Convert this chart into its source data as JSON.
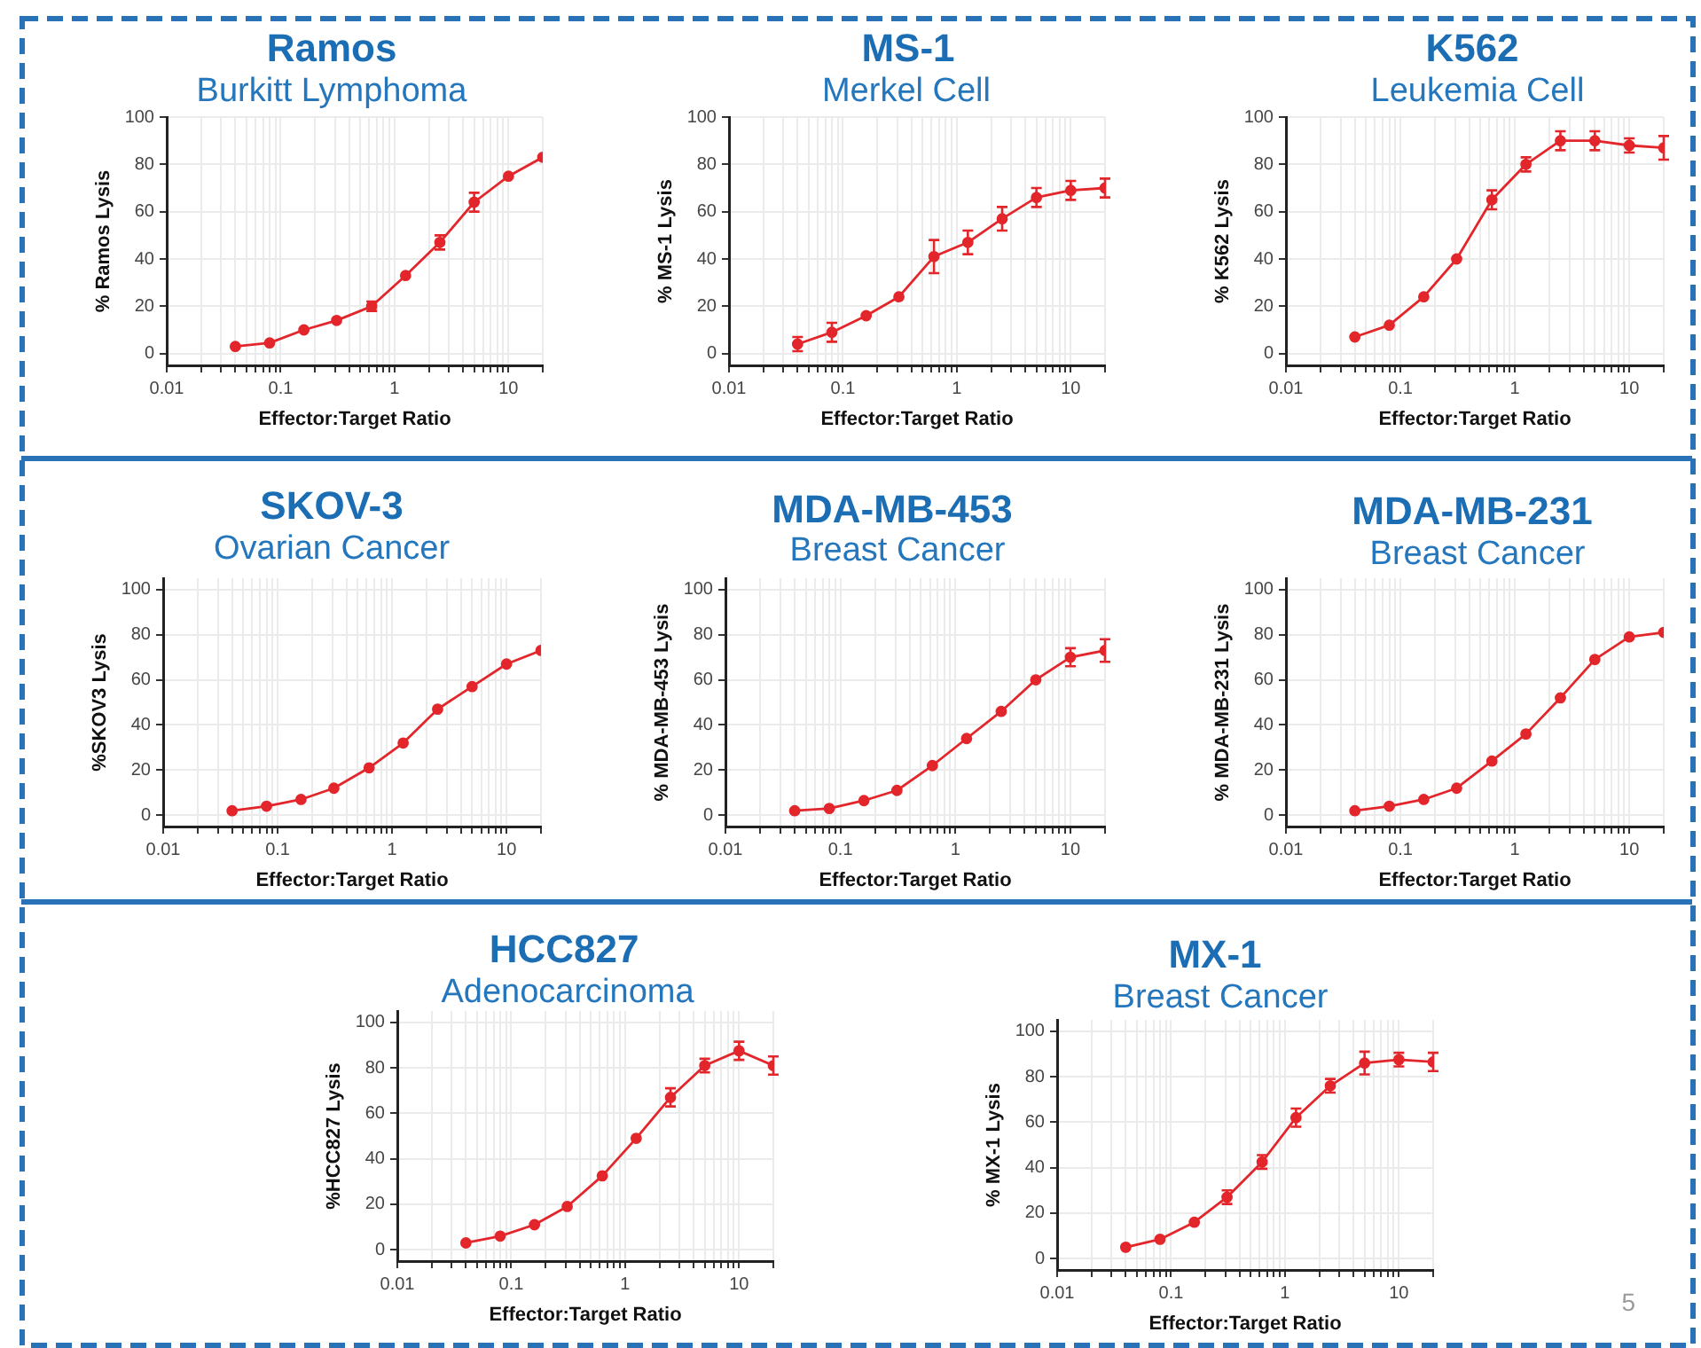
{
  "chart_data": [
    {
      "type": "line",
      "title": "Ramos",
      "subtitle": "Burkitt Lymphoma",
      "xlabel": "Effector:Target Ratio",
      "ylabel": "% Ramos Lysis",
      "x": [
        0.04,
        0.08,
        0.16,
        0.31,
        0.63,
        1.25,
        2.5,
        5,
        10,
        20
      ],
      "series": [
        {
          "color": "#e3262b",
          "values": [
            3,
            4.5,
            10,
            14,
            20,
            33,
            47,
            64,
            75,
            83
          ],
          "errors": [
            null,
            null,
            null,
            null,
            2,
            null,
            3,
            4,
            null,
            null
          ]
        }
      ],
      "log": "x",
      "xlim": [
        0.01,
        20
      ],
      "xticks": [
        0.01,
        {
          "value": 0.02,
          "label": null
        },
        {
          "value": 0.03,
          "label": null
        },
        {
          "value": 0.04,
          "label": null
        },
        {
          "value": 0.05,
          "label": null
        },
        {
          "value": 0.06,
          "label": null
        },
        {
          "value": 0.07,
          "label": null
        },
        {
          "value": 0.08,
          "label": null
        },
        {
          "value": 0.09,
          "label": null
        },
        0.1,
        {
          "value": 0.2,
          "label": null
        },
        {
          "value": 0.3,
          "label": null
        },
        {
          "value": 0.4,
          "label": null
        },
        {
          "value": 0.5,
          "label": null
        },
        {
          "value": 0.6,
          "label": null
        },
        {
          "value": 0.7,
          "label": null
        },
        {
          "value": 0.8,
          "label": null
        },
        {
          "value": 0.9,
          "label": null
        },
        1,
        {
          "value": 2,
          "label": null
        },
        {
          "value": 3,
          "label": null
        },
        {
          "value": 4,
          "label": null
        },
        {
          "value": 5,
          "label": null
        },
        {
          "value": 6,
          "label": null
        },
        {
          "value": 7,
          "label": null
        },
        {
          "value": 8,
          "label": null
        },
        {
          "value": 9,
          "label": null
        },
        10,
        {
          "value": 20,
          "label": null
        }
      ],
      "ylim": [
        -5,
        100
      ],
      "yticks": [
        0,
        20,
        40,
        60,
        80,
        100
      ],
      "grid": true,
      "marker": "circle",
      "line_style": "solid"
    },
    {
      "type": "line",
      "title": "MS-1",
      "subtitle": "Merkel Cell",
      "xlabel": "Effector:Target Ratio",
      "ylabel": "% MS-1 Lysis",
      "x": [
        0.04,
        0.08,
        0.16,
        0.31,
        0.63,
        1.25,
        2.5,
        5,
        10,
        20
      ],
      "series": [
        {
          "color": "#e3262b",
          "values": [
            4,
            9,
            16,
            24,
            41,
            47,
            57,
            66,
            69,
            70
          ],
          "errors": [
            3,
            4,
            null,
            null,
            7,
            5,
            5,
            4,
            4,
            4
          ]
        }
      ],
      "log": "x",
      "xlim": [
        0.01,
        20
      ],
      "xticks": [
        0.01,
        {
          "value": 0.02,
          "label": null
        },
        {
          "value": 0.03,
          "label": null
        },
        {
          "value": 0.04,
          "label": null
        },
        {
          "value": 0.05,
          "label": null
        },
        {
          "value": 0.06,
          "label": null
        },
        {
          "value": 0.07,
          "label": null
        },
        {
          "value": 0.08,
          "label": null
        },
        {
          "value": 0.09,
          "label": null
        },
        0.1,
        {
          "value": 0.2,
          "label": null
        },
        {
          "value": 0.3,
          "label": null
        },
        {
          "value": 0.4,
          "label": null
        },
        {
          "value": 0.5,
          "label": null
        },
        {
          "value": 0.6,
          "label": null
        },
        {
          "value": 0.7,
          "label": null
        },
        {
          "value": 0.8,
          "label": null
        },
        {
          "value": 0.9,
          "label": null
        },
        1,
        {
          "value": 2,
          "label": null
        },
        {
          "value": 3,
          "label": null
        },
        {
          "value": 4,
          "label": null
        },
        {
          "value": 5,
          "label": null
        },
        {
          "value": 6,
          "label": null
        },
        {
          "value": 7,
          "label": null
        },
        {
          "value": 8,
          "label": null
        },
        {
          "value": 9,
          "label": null
        },
        10,
        {
          "value": 20,
          "label": null
        }
      ],
      "ylim": [
        -5,
        100
      ],
      "yticks": [
        0,
        20,
        40,
        60,
        80,
        100
      ],
      "grid": true,
      "marker": "circle",
      "line_style": "solid"
    },
    {
      "type": "line",
      "title": "K562",
      "subtitle": "Leukemia Cell",
      "xlabel": "Effector:Target Ratio",
      "ylabel": "% K562 Lysis",
      "x": [
        0.04,
        0.08,
        0.16,
        0.31,
        0.63,
        1.25,
        2.5,
        5,
        10,
        20
      ],
      "series": [
        {
          "color": "#e3262b",
          "values": [
            7,
            12,
            24,
            40,
            65,
            80,
            90,
            90,
            88,
            87
          ],
          "errors": [
            null,
            null,
            null,
            null,
            4,
            3,
            4,
            4,
            3,
            5
          ]
        }
      ],
      "log": "x",
      "xlim": [
        0.01,
        20
      ],
      "xticks": [
        0.01,
        {
          "value": 0.02,
          "label": null
        },
        {
          "value": 0.03,
          "label": null
        },
        {
          "value": 0.04,
          "label": null
        },
        {
          "value": 0.05,
          "label": null
        },
        {
          "value": 0.06,
          "label": null
        },
        {
          "value": 0.07,
          "label": null
        },
        {
          "value": 0.08,
          "label": null
        },
        {
          "value": 0.09,
          "label": null
        },
        0.1,
        {
          "value": 0.2,
          "label": null
        },
        {
          "value": 0.3,
          "label": null
        },
        {
          "value": 0.4,
          "label": null
        },
        {
          "value": 0.5,
          "label": null
        },
        {
          "value": 0.6,
          "label": null
        },
        {
          "value": 0.7,
          "label": null
        },
        {
          "value": 0.8,
          "label": null
        },
        {
          "value": 0.9,
          "label": null
        },
        1,
        {
          "value": 2,
          "label": null
        },
        {
          "value": 3,
          "label": null
        },
        {
          "value": 4,
          "label": null
        },
        {
          "value": 5,
          "label": null
        },
        {
          "value": 6,
          "label": null
        },
        {
          "value": 7,
          "label": null
        },
        {
          "value": 8,
          "label": null
        },
        {
          "value": 9,
          "label": null
        },
        10,
        {
          "value": 20,
          "label": null
        }
      ],
      "ylim": [
        -5,
        100
      ],
      "yticks": [
        0,
        20,
        40,
        60,
        80,
        100
      ],
      "grid": true,
      "marker": "circle",
      "line_style": "solid"
    },
    {
      "type": "line",
      "title": "SKOV-3",
      "subtitle": "Ovarian Cancer",
      "xlabel": "Effector:Target Ratio",
      "ylabel": "%SKOV3 Lysis",
      "x": [
        0.04,
        0.08,
        0.16,
        0.31,
        0.63,
        1.25,
        2.5,
        5,
        10,
        20
      ],
      "series": [
        {
          "color": "#e3262b",
          "values": [
            2,
            4,
            7,
            12,
            21,
            32,
            47,
            57,
            67,
            73
          ]
        }
      ],
      "log": "x",
      "xlim": [
        0.01,
        20
      ],
      "xticks": [
        0.01,
        {
          "value": 0.02,
          "label": null
        },
        {
          "value": 0.03,
          "label": null
        },
        {
          "value": 0.04,
          "label": null
        },
        {
          "value": 0.05,
          "label": null
        },
        {
          "value": 0.06,
          "label": null
        },
        {
          "value": 0.07,
          "label": null
        },
        {
          "value": 0.08,
          "label": null
        },
        {
          "value": 0.09,
          "label": null
        },
        0.1,
        {
          "value": 0.2,
          "label": null
        },
        {
          "value": 0.3,
          "label": null
        },
        {
          "value": 0.4,
          "label": null
        },
        {
          "value": 0.5,
          "label": null
        },
        {
          "value": 0.6,
          "label": null
        },
        {
          "value": 0.7,
          "label": null
        },
        {
          "value": 0.8,
          "label": null
        },
        {
          "value": 0.9,
          "label": null
        },
        1,
        {
          "value": 2,
          "label": null
        },
        {
          "value": 3,
          "label": null
        },
        {
          "value": 4,
          "label": null
        },
        {
          "value": 5,
          "label": null
        },
        {
          "value": 6,
          "label": null
        },
        {
          "value": 7,
          "label": null
        },
        {
          "value": 8,
          "label": null
        },
        {
          "value": 9,
          "label": null
        },
        10,
        {
          "value": 20,
          "label": null
        }
      ],
      "ylim": [
        -5,
        105
      ],
      "yticks": [
        0,
        20,
        40,
        60,
        80,
        100
      ],
      "grid": true,
      "marker": "circle",
      "line_style": "solid"
    },
    {
      "type": "line",
      "title": "MDA-MB-453",
      "subtitle": "Breast Cancer",
      "xlabel": "Effector:Target Ratio",
      "ylabel": "% MDA-MB-453 Lysis",
      "x": [
        0.04,
        0.08,
        0.16,
        0.31,
        0.63,
        1.25,
        2.5,
        5,
        10,
        20
      ],
      "series": [
        {
          "color": "#e3262b",
          "values": [
            2,
            3,
            6.5,
            11,
            22,
            34,
            46,
            60,
            70,
            73
          ],
          "errors": [
            null,
            null,
            null,
            null,
            null,
            null,
            null,
            null,
            4,
            5
          ]
        }
      ],
      "log": "x",
      "xlim": [
        0.01,
        20
      ],
      "xticks": [
        0.01,
        {
          "value": 0.02,
          "label": null
        },
        {
          "value": 0.03,
          "label": null
        },
        {
          "value": 0.04,
          "label": null
        },
        {
          "value": 0.05,
          "label": null
        },
        {
          "value": 0.06,
          "label": null
        },
        {
          "value": 0.07,
          "label": null
        },
        {
          "value": 0.08,
          "label": null
        },
        {
          "value": 0.09,
          "label": null
        },
        0.1,
        {
          "value": 0.2,
          "label": null
        },
        {
          "value": 0.3,
          "label": null
        },
        {
          "value": 0.4,
          "label": null
        },
        {
          "value": 0.5,
          "label": null
        },
        {
          "value": 0.6,
          "label": null
        },
        {
          "value": 0.7,
          "label": null
        },
        {
          "value": 0.8,
          "label": null
        },
        {
          "value": 0.9,
          "label": null
        },
        1,
        {
          "value": 2,
          "label": null
        },
        {
          "value": 3,
          "label": null
        },
        {
          "value": 4,
          "label": null
        },
        {
          "value": 5,
          "label": null
        },
        {
          "value": 6,
          "label": null
        },
        {
          "value": 7,
          "label": null
        },
        {
          "value": 8,
          "label": null
        },
        {
          "value": 9,
          "label": null
        },
        10,
        {
          "value": 20,
          "label": null
        }
      ],
      "ylim": [
        -5,
        105
      ],
      "yticks": [
        0,
        20,
        40,
        60,
        80,
        100
      ],
      "grid": true,
      "marker": "circle",
      "line_style": "solid"
    },
    {
      "type": "line",
      "title": "MDA-MB-231",
      "subtitle": "Breast Cancer",
      "xlabel": "Effector:Target Ratio",
      "ylabel": "% MDA-MB-231 Lysis",
      "x": [
        0.04,
        0.08,
        0.16,
        0.31,
        0.63,
        1.25,
        2.5,
        5,
        10,
        20
      ],
      "series": [
        {
          "color": "#e3262b",
          "values": [
            2,
            4,
            7,
            12,
            24,
            36,
            52,
            69,
            79,
            81
          ]
        }
      ],
      "log": "x",
      "xlim": [
        0.01,
        20
      ],
      "xticks": [
        0.01,
        {
          "value": 0.02,
          "label": null
        },
        {
          "value": 0.03,
          "label": null
        },
        {
          "value": 0.04,
          "label": null
        },
        {
          "value": 0.05,
          "label": null
        },
        {
          "value": 0.06,
          "label": null
        },
        {
          "value": 0.07,
          "label": null
        },
        {
          "value": 0.08,
          "label": null
        },
        {
          "value": 0.09,
          "label": null
        },
        0.1,
        {
          "value": 0.2,
          "label": null
        },
        {
          "value": 0.3,
          "label": null
        },
        {
          "value": 0.4,
          "label": null
        },
        {
          "value": 0.5,
          "label": null
        },
        {
          "value": 0.6,
          "label": null
        },
        {
          "value": 0.7,
          "label": null
        },
        {
          "value": 0.8,
          "label": null
        },
        {
          "value": 0.9,
          "label": null
        },
        1,
        {
          "value": 2,
          "label": null
        },
        {
          "value": 3,
          "label": null
        },
        {
          "value": 4,
          "label": null
        },
        {
          "value": 5,
          "label": null
        },
        {
          "value": 6,
          "label": null
        },
        {
          "value": 7,
          "label": null
        },
        {
          "value": 8,
          "label": null
        },
        {
          "value": 9,
          "label": null
        },
        10,
        {
          "value": 20,
          "label": null
        }
      ],
      "ylim": [
        -5,
        105
      ],
      "yticks": [
        0,
        20,
        40,
        60,
        80,
        100
      ],
      "grid": true,
      "marker": "circle",
      "line_style": "solid"
    },
    {
      "type": "line",
      "title": "HCC827",
      "subtitle": "Adenocarcinoma",
      "xlabel": "Effector:Target Ratio",
      "ylabel": "%HCC827 Lysis",
      "x": [
        0.04,
        0.08,
        0.16,
        0.31,
        0.63,
        1.25,
        2.5,
        5,
        10,
        20
      ],
      "series": [
        {
          "color": "#e3262b",
          "values": [
            3,
            6,
            11,
            19,
            32.5,
            49,
            67,
            81,
            87.5,
            81
          ],
          "errors": [
            null,
            null,
            null,
            null,
            null,
            null,
            4,
            3,
            4,
            4
          ]
        }
      ],
      "log": "x",
      "xlim": [
        0.01,
        20
      ],
      "xticks": [
        0.01,
        {
          "value": 0.02,
          "label": null
        },
        {
          "value": 0.03,
          "label": null
        },
        {
          "value": 0.04,
          "label": null
        },
        {
          "value": 0.05,
          "label": null
        },
        {
          "value": 0.06,
          "label": null
        },
        {
          "value": 0.07,
          "label": null
        },
        {
          "value": 0.08,
          "label": null
        },
        {
          "value": 0.09,
          "label": null
        },
        0.1,
        {
          "value": 0.2,
          "label": null
        },
        {
          "value": 0.3,
          "label": null
        },
        {
          "value": 0.4,
          "label": null
        },
        {
          "value": 0.5,
          "label": null
        },
        {
          "value": 0.6,
          "label": null
        },
        {
          "value": 0.7,
          "label": null
        },
        {
          "value": 0.8,
          "label": null
        },
        {
          "value": 0.9,
          "label": null
        },
        1,
        {
          "value": 2,
          "label": null
        },
        {
          "value": 3,
          "label": null
        },
        {
          "value": 4,
          "label": null
        },
        {
          "value": 5,
          "label": null
        },
        {
          "value": 6,
          "label": null
        },
        {
          "value": 7,
          "label": null
        },
        {
          "value": 8,
          "label": null
        },
        {
          "value": 9,
          "label": null
        },
        10,
        {
          "value": 20,
          "label": null
        }
      ],
      "ylim": [
        -5,
        105
      ],
      "yticks": [
        0,
        20,
        40,
        60,
        80,
        100
      ],
      "grid": true,
      "marker": "circle",
      "line_style": "solid"
    },
    {
      "type": "line",
      "title": "MX-1",
      "subtitle": "Breast Cancer",
      "xlabel": "Effector:Target Ratio",
      "ylabel": "% MX-1 Lysis",
      "x": [
        0.04,
        0.08,
        0.16,
        0.31,
        0.63,
        1.25,
        2.5,
        5,
        10,
        20
      ],
      "series": [
        {
          "color": "#e3262b",
          "values": [
            5,
            8.5,
            16,
            27,
            42.5,
            62,
            76,
            86,
            87.5,
            86.5
          ],
          "errors": [
            null,
            null,
            null,
            3,
            3,
            4,
            3,
            5,
            3,
            4
          ]
        }
      ],
      "log": "x",
      "xlim": [
        0.01,
        20
      ],
      "xticks": [
        0.01,
        {
          "value": 0.02,
          "label": null
        },
        {
          "value": 0.03,
          "label": null
        },
        {
          "value": 0.04,
          "label": null
        },
        {
          "value": 0.05,
          "label": null
        },
        {
          "value": 0.06,
          "label": null
        },
        {
          "value": 0.07,
          "label": null
        },
        {
          "value": 0.08,
          "label": null
        },
        {
          "value": 0.09,
          "label": null
        },
        0.1,
        {
          "value": 0.2,
          "label": null
        },
        {
          "value": 0.3,
          "label": null
        },
        {
          "value": 0.4,
          "label": null
        },
        {
          "value": 0.5,
          "label": null
        },
        {
          "value": 0.6,
          "label": null
        },
        {
          "value": 0.7,
          "label": null
        },
        {
          "value": 0.8,
          "label": null
        },
        {
          "value": 0.9,
          "label": null
        },
        1,
        {
          "value": 2,
          "label": null
        },
        {
          "value": 3,
          "label": null
        },
        {
          "value": 4,
          "label": null
        },
        {
          "value": 5,
          "label": null
        },
        {
          "value": 6,
          "label": null
        },
        {
          "value": 7,
          "label": null
        },
        {
          "value": 8,
          "label": null
        },
        {
          "value": 9,
          "label": null
        },
        10,
        {
          "value": 20,
          "label": null
        }
      ],
      "ylim": [
        -5,
        105
      ],
      "yticks": [
        0,
        20,
        40,
        60,
        80,
        100
      ],
      "grid": true,
      "marker": "circle",
      "line_style": "solid",
      "annotations": [
        "5"
      ]
    }
  ]
}
